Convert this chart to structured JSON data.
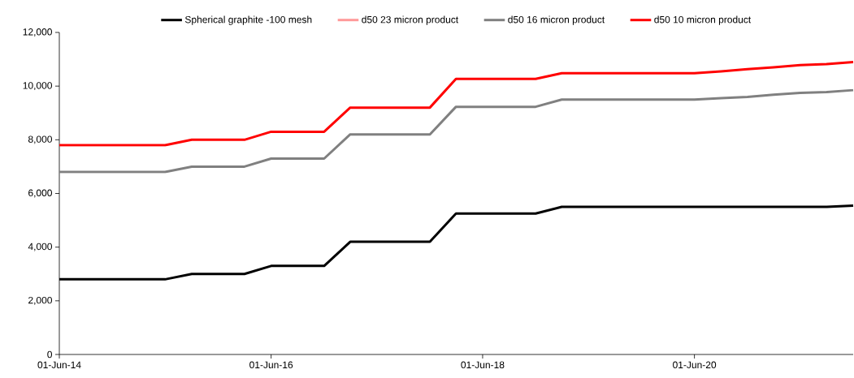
{
  "chart_data": {
    "type": "line",
    "x": [
      "2014-06-01",
      "2014-09-01",
      "2014-12-01",
      "2015-03-01",
      "2015-06-01",
      "2015-09-01",
      "2015-12-01",
      "2016-03-01",
      "2016-06-01",
      "2016-09-01",
      "2016-12-01",
      "2017-03-01",
      "2017-06-01",
      "2017-09-01",
      "2017-12-01",
      "2018-03-01",
      "2018-06-01",
      "2018-09-01",
      "2018-12-01",
      "2019-03-01",
      "2019-06-01",
      "2019-09-01",
      "2019-12-01",
      "2020-03-01",
      "2020-06-01",
      "2020-09-01",
      "2020-12-01",
      "2021-03-01",
      "2021-06-01",
      "2021-09-01",
      "2021-12-01"
    ],
    "series": [
      {
        "name": "Spherical graphite -100  mesh",
        "color": "#000000",
        "values": [
          2800,
          2800,
          2800,
          2800,
          2800,
          3000,
          3000,
          3000,
          3300,
          3300,
          3300,
          4200,
          4200,
          4200,
          4200,
          5250,
          5250,
          5250,
          5250,
          5500,
          5500,
          5500,
          5500,
          5500,
          5500,
          5500,
          5500,
          5500,
          5500,
          5500,
          5550
        ]
      },
      {
        "name": "d50 23 micron product",
        "color": "#ff9999",
        "values": [
          null,
          null,
          null,
          null,
          null,
          null,
          null,
          null,
          null,
          null,
          null,
          null,
          null,
          null,
          null,
          null,
          null,
          null,
          null,
          null,
          null,
          null,
          null,
          null,
          null,
          null,
          null,
          null,
          null,
          null,
          null
        ]
      },
      {
        "name": "d50 16 micron product",
        "color": "#808080",
        "values": [
          6800,
          6800,
          6800,
          6800,
          6800,
          7000,
          7000,
          7000,
          7300,
          7300,
          7300,
          8200,
          8200,
          8200,
          8200,
          9230,
          9230,
          9230,
          9230,
          9500,
          9500,
          9500,
          9500,
          9500,
          9500,
          9550,
          9600,
          9680,
          9750,
          9780,
          9850
        ]
      },
      {
        "name": "d50 10 micron product",
        "color": "#ff0000",
        "values": [
          7800,
          7800,
          7800,
          7800,
          7800,
          8000,
          8000,
          8000,
          8300,
          8300,
          8300,
          9200,
          9200,
          9200,
          9200,
          10270,
          10270,
          10270,
          10270,
          10480,
          10480,
          10480,
          10480,
          10480,
          10480,
          10550,
          10630,
          10700,
          10780,
          10820,
          10900
        ]
      }
    ],
    "xlim": [
      "2014-06-01",
      "2021-12-01"
    ],
    "xticks": [
      {
        "value": "2014-06-01",
        "label": "01-Jun-14"
      },
      {
        "value": "2016-06-01",
        "label": "01-Jun-16"
      },
      {
        "value": "2018-06-01",
        "label": "01-Jun-18"
      },
      {
        "value": "2020-06-01",
        "label": "01-Jun-20"
      }
    ],
    "ylim": [
      0,
      12000
    ],
    "yticks": [
      {
        "value": 0,
        "label": "0"
      },
      {
        "value": 2000,
        "label": "2,000"
      },
      {
        "value": 4000,
        "label": "4,000"
      },
      {
        "value": 6000,
        "label": "6,000"
      },
      {
        "value": 8000,
        "label": "8,000"
      },
      {
        "value": 10000,
        "label": "10,000"
      },
      {
        "value": 12000,
        "label": "12,000"
      }
    ],
    "legend": "top"
  }
}
